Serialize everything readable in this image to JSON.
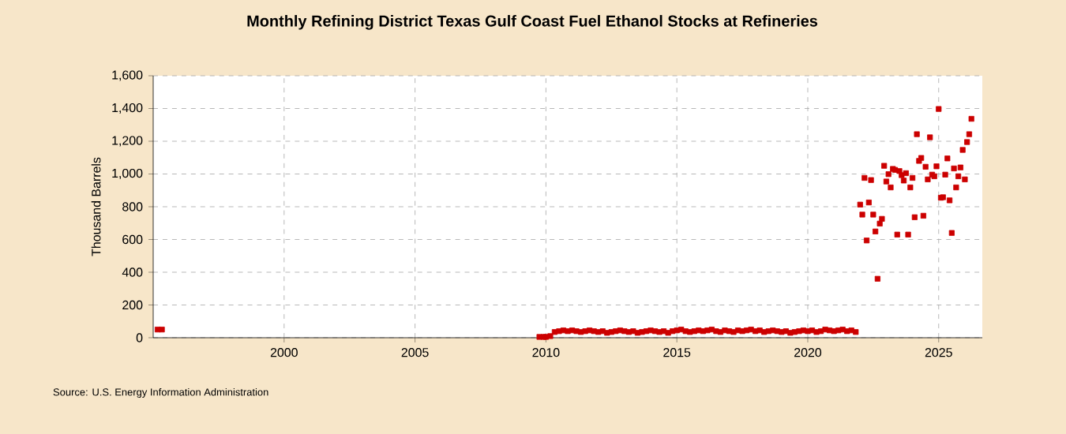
{
  "chart_data": {
    "type": "scatter",
    "title": "Monthly Refining District Texas Gulf Coast Fuel Ethanol Stocks at Refineries",
    "ylabel": "Thousand Barrels",
    "annotations": [
      "Source: U.S. Energy Information Administration"
    ],
    "xlim": [
      "1995-01",
      "2026-09"
    ],
    "xticks": [
      "2000",
      "2005",
      "2010",
      "2015",
      "2020",
      "2025"
    ],
    "ylim": [
      0,
      1600
    ],
    "yticks": [
      0,
      200,
      400,
      600,
      800,
      {
        "value": 1000,
        "label": "1,000"
      },
      {
        "value": 1200,
        "label": "1,200"
      },
      {
        "value": 1400,
        "label": "1,400"
      },
      {
        "value": 1600,
        "label": "1,600"
      }
    ],
    "grid": true,
    "marker": "square",
    "series": [
      {
        "color": "#cc0000",
        "x": [
          "1995-03",
          "1995-05",
          "2009-10",
          "2009-12",
          "2010-01",
          "2010-03",
          "2010-05",
          "2010-07",
          "2010-09",
          "2010-11",
          "2011-01",
          "2011-03",
          "2011-05",
          "2011-07",
          "2011-09",
          "2011-11",
          "2012-01",
          "2012-03",
          "2012-05",
          "2012-07",
          "2012-09",
          "2012-11",
          "2013-01",
          "2013-03",
          "2013-05",
          "2013-07",
          "2013-09",
          "2013-11",
          "2014-01",
          "2014-03",
          "2014-05",
          "2014-07",
          "2014-09",
          "2014-11",
          "2015-01",
          "2015-03",
          "2015-05",
          "2015-07",
          "2015-09",
          "2015-11",
          "2016-01",
          "2016-03",
          "2016-05",
          "2016-07",
          "2016-09",
          "2016-11",
          "2017-01",
          "2017-03",
          "2017-05",
          "2017-07",
          "2017-09",
          "2017-11",
          "2018-01",
          "2018-03",
          "2018-05",
          "2018-07",
          "2018-09",
          "2018-11",
          "2019-01",
          "2019-03",
          "2019-05",
          "2019-07",
          "2019-09",
          "2019-11",
          "2020-01",
          "2020-03",
          "2020-05",
          "2020-07",
          "2020-09",
          "2020-11",
          "2021-01",
          "2021-03",
          "2021-05",
          "2021-07",
          "2021-09",
          "2021-11",
          "2022-01",
          "2022-02",
          "2022-03",
          "2022-04",
          "2022-05",
          "2022-06",
          "2022-07",
          "2022-08",
          "2022-09",
          "2022-10",
          "2022-11",
          "2022-12",
          "2023-01",
          "2023-02",
          "2023-03",
          "2023-04",
          "2023-05",
          "2023-06",
          "2023-07",
          "2023-08",
          "2023-09",
          "2023-10",
          "2023-11",
          "2023-12",
          "2024-01",
          "2024-02",
          "2024-03",
          "2024-04",
          "2024-05",
          "2024-06",
          "2024-07",
          "2024-08",
          "2024-09",
          "2024-10",
          "2024-11",
          "2024-12",
          "2025-01",
          "2025-02",
          "2025-03",
          "2025-04",
          "2025-05",
          "2025-06",
          "2025-07",
          "2025-08",
          "2025-09",
          "2025-10",
          "2025-11",
          "2025-12",
          "2026-01",
          "2026-02",
          "2026-03",
          "2026-04"
        ],
        "values": [
          50,
          50,
          5,
          5,
          5,
          10,
          35,
          40,
          45,
          40,
          45,
          40,
          35,
          40,
          45,
          40,
          35,
          40,
          30,
          35,
          40,
          45,
          40,
          35,
          40,
          30,
          35,
          40,
          45,
          40,
          35,
          40,
          30,
          40,
          45,
          50,
          40,
          35,
          40,
          45,
          40,
          45,
          50,
          40,
          35,
          45,
          40,
          35,
          45,
          40,
          45,
          50,
          40,
          45,
          35,
          40,
          45,
          40,
          35,
          40,
          30,
          35,
          40,
          45,
          40,
          45,
          35,
          40,
          50,
          45,
          40,
          45,
          50,
          40,
          45,
          35,
          813,
          752,
          976,
          594,
          826,
          963,
          752,
          649,
          360,
          697,
          726,
          1050,
          954,
          999,
          918,
          1031,
          1025,
          630,
          1018,
          993,
          960,
          1005,
          630,
          918,
          976,
          736,
          1243,
          1080,
          1098,
          745,
          1044,
          967,
          1224,
          996,
          986,
          1047,
          1397,
          855,
          858,
          996,
          1095,
          839,
          640,
          1034,
          918,
          986,
          1040,
          1147,
          967,
          1195,
          1243,
          1337
        ]
      }
    ]
  }
}
